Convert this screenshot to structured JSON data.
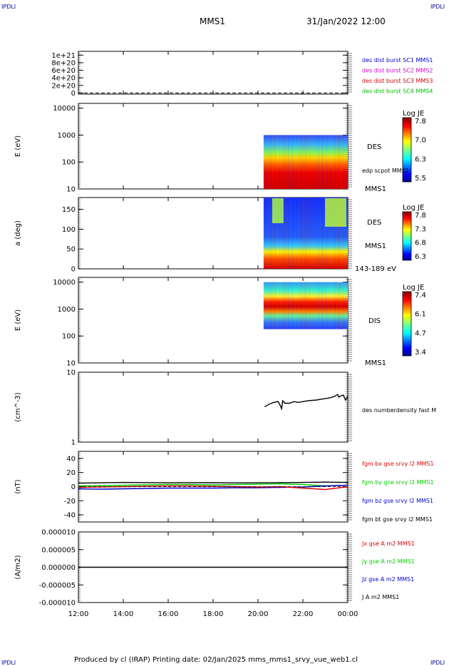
{
  "header": {
    "left_corner": "IPDLI",
    "right_corner": "IPDLI",
    "spacecraft": "MMS1",
    "datetime": "31/Jan/2022 12:00"
  },
  "footer": {
    "text": "Produced by cl (IRAP)   Printing date: 02/Jan/2025   mms_mms1_srvy_vue_web1.cl",
    "left_corner": "IPDLI",
    "right_corner": "IPDLI"
  },
  "colors": {
    "mms1": "#0000cc",
    "mms2": "#cc00cc",
    "mms3": "#cc0000",
    "mms4": "#00bb00",
    "bx": "#dd0000",
    "by": "#00cc00",
    "bz": "#0000cc",
    "bt": "#000000"
  },
  "chart_data": [
    {
      "id": "panel1",
      "type": "line",
      "ylim": [
        -30000000000000000000,
        1100000000000000000000
      ],
      "ytick_labels": [
        "1e+21",
        "8e+20",
        "6e+20",
        "4e+20",
        "2e+20",
        "0"
      ],
      "ytick_values": [
        1e+21,
        8e+20,
        6e+20,
        4e+20,
        2e+20,
        0
      ],
      "legend": [
        {
          "label": "des dist burst SC1 MMS1",
          "color": "#0000cc"
        },
        {
          "label": "des dist burst SC2 MMS2",
          "color": "#cc00cc"
        },
        {
          "label": "des dist burst SC3 MMS3",
          "color": "#cc0000"
        },
        {
          "label": "des dist burst SC4 MMS4",
          "color": "#00bb00"
        }
      ],
      "reference_line": 0
    },
    {
      "id": "panel2",
      "type": "heatmap",
      "ylabel": "E (eV)",
      "yscale": "log",
      "ylim": [
        10,
        15000
      ],
      "ytick_labels": [
        "10000",
        "1000",
        "100",
        "10"
      ],
      "ytick_values": [
        10000,
        1000,
        100,
        10
      ],
      "data_start_hour": 20.25,
      "data_end_hour": 24,
      "colorbar": {
        "title": "Log JE",
        "labels": [
          "7.8",
          "7.0",
          "6.3",
          "5.5"
        ],
        "range": [
          5.5,
          7.8
        ]
      },
      "side_labels": [
        "DES",
        "edp scpot MMS1",
        "MMS1"
      ]
    },
    {
      "id": "panel3",
      "type": "heatmap",
      "ylabel": "a (deg)",
      "ylim": [
        0,
        180
      ],
      "ytick_labels": [
        "150",
        "100",
        "50",
        "0"
      ],
      "ytick_values": [
        150,
        100,
        50,
        0
      ],
      "data_start_hour": 20.25,
      "data_end_hour": 24,
      "colorbar": {
        "title": "Log JE",
        "labels": [
          "7.8",
          "7.3",
          "6.8",
          "6.3"
        ],
        "range": [
          6.3,
          7.8
        ]
      },
      "side_labels": [
        "DES",
        "MMS1",
        "143-189 eV"
      ]
    },
    {
      "id": "panel4",
      "type": "heatmap",
      "ylabel": "E (eV)",
      "yscale": "log",
      "ylim": [
        10,
        15000
      ],
      "ytick_labels": [
        "10000",
        "1000",
        "100",
        "10"
      ],
      "ytick_values": [
        10000,
        1000,
        100,
        10
      ],
      "data_start_hour": 20.25,
      "data_end_hour": 24,
      "colorbar": {
        "title": "Log JE",
        "labels": [
          "7.4",
          "6.1",
          "4.7",
          "3.4"
        ],
        "range": [
          3.4,
          7.4
        ]
      },
      "side_labels": [
        "DIS",
        "MMS1"
      ]
    },
    {
      "id": "panel5",
      "type": "line",
      "ylabel": "(cm^-3)",
      "yscale": "log",
      "ylim": [
        1,
        10
      ],
      "ytick_labels": [
        "10",
        "1"
      ],
      "ytick_values": [
        10,
        1
      ],
      "legend": [
        {
          "label": "des numberdensity fast M",
          "color": "#000000"
        }
      ],
      "series": [
        {
          "name": "des numberdensity fast M",
          "color": "#000000",
          "x": [
            20.3,
            20.5,
            20.7,
            20.9,
            21.0,
            21.05,
            21.1,
            21.2,
            21.4,
            21.6,
            21.8,
            22.0,
            22.2,
            22.4,
            22.6,
            22.8,
            23.0,
            23.2,
            23.4,
            23.55,
            23.6,
            23.7,
            23.8,
            23.9,
            24.0
          ],
          "y": [
            3.2,
            3.5,
            3.7,
            3.8,
            3.3,
            3.0,
            3.9,
            3.6,
            3.6,
            3.8,
            3.7,
            3.8,
            3.9,
            3.95,
            4.0,
            4.1,
            4.2,
            4.3,
            4.5,
            4.8,
            4.4,
            4.6,
            4.7,
            4.0,
            4.5
          ]
        }
      ]
    },
    {
      "id": "panel6",
      "type": "line",
      "ylabel": "(nT)",
      "ylim": [
        -50,
        50
      ],
      "ytick_labels": [
        "40",
        "20",
        "0",
        "-20",
        "-40"
      ],
      "ytick_values": [
        40,
        20,
        0,
        -20,
        -40
      ],
      "legend": [
        {
          "label": "fgm bx gse srvy l2 MMS1",
          "color": "#dd0000"
        },
        {
          "label": "fgm by gse srvy l2 MMS1",
          "color": "#00cc00"
        },
        {
          "label": "fgm bz gse srvy l2 MMS1",
          "color": "#0000cc"
        },
        {
          "label": "fgm bt gse srvy l2 MMS1",
          "color": "#000000"
        }
      ],
      "series": [
        {
          "name": "fgm bt gse srvy l2 MMS1",
          "color": "#000000",
          "x": [
            12,
            13,
            14,
            15,
            16,
            17,
            18,
            19,
            20,
            21,
            22,
            23,
            24
          ],
          "y": [
            5,
            5.5,
            6,
            5.8,
            5.5,
            5.7,
            5.6,
            5.4,
            5.5,
            5.8,
            6,
            6.5,
            6
          ]
        },
        {
          "name": "fgm by gse srvy l2 MMS1",
          "color": "#00cc00",
          "x": [
            12,
            13,
            14,
            15,
            16,
            17,
            18,
            19,
            20,
            21,
            22,
            23,
            24
          ],
          "y": [
            1,
            1.5,
            2,
            2.5,
            3,
            3,
            2.5,
            3,
            3.5,
            4,
            3,
            1,
            2
          ]
        },
        {
          "name": "fgm bz gse srvy l2 MMS1",
          "color": "#0000cc",
          "x": [
            12,
            13,
            14,
            15,
            16,
            17,
            18,
            19,
            20,
            21,
            22,
            23,
            24
          ],
          "y": [
            -3,
            -3.5,
            -3,
            -2.5,
            -2,
            -2,
            -2,
            -1.5,
            -1.5,
            -1,
            -0.5,
            1,
            2
          ]
        },
        {
          "name": "fgm bx gse srvy l2 MMS1",
          "color": "#dd0000",
          "x": [
            12,
            13,
            14,
            15,
            16,
            17,
            18,
            19,
            20,
            21,
            22,
            22.5,
            23,
            23.5,
            24
          ],
          "y": [
            -1,
            -0.5,
            0,
            0.5,
            1,
            1,
            0.5,
            0,
            -0.5,
            0,
            -2,
            -3,
            -4,
            -2,
            0
          ]
        }
      ]
    },
    {
      "id": "panel7",
      "type": "line",
      "ylabel": "(A/m2)",
      "ylim": [
        -1e-05,
        1e-05
      ],
      "ytick_labels": [
        "0.000010",
        "0.000005",
        "0.000000",
        "-0.000005",
        "-0.000010"
      ],
      "ytick_values": [
        1e-05,
        5e-06,
        0,
        -5e-06,
        -1e-05
      ],
      "legend": [
        {
          "label": "Jx gse A m2 MMS1",
          "color": "#dd0000"
        },
        {
          "label": "Jy gse A m2 MMS1",
          "color": "#00cc00"
        },
        {
          "label": "Jz gse A m2 MMS1",
          "color": "#0000cc"
        },
        {
          "label": "J A m2 MMS1",
          "color": "#000000"
        }
      ],
      "series": [
        {
          "name": "J A m2 MMS1",
          "color": "#000000",
          "x": [
            12,
            24
          ],
          "y": [
            0,
            0
          ]
        }
      ]
    }
  ],
  "xaxis": {
    "range_hours": [
      12,
      24
    ],
    "tick_labels": [
      "12:00",
      "14:00",
      "16:00",
      "18:00",
      "20:00",
      "22:00",
      "00:00"
    ],
    "tick_values": [
      12,
      14,
      16,
      18,
      20,
      22,
      24
    ]
  }
}
